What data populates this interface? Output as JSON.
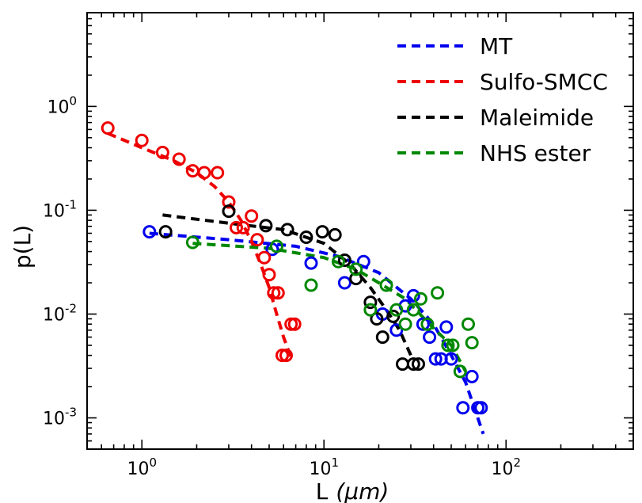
{
  "chart_data": {
    "type": "scatter",
    "title": "",
    "xlabel": "L",
    "xlabel_unit": "(μm)",
    "ylabel": "p(L)",
    "x_scale": "log",
    "y_scale": "log",
    "xlim": [
      0.5,
      500
    ],
    "ylim": [
      0.0005,
      8
    ],
    "grid": false,
    "legend_position": "top-right",
    "x_ticks": [
      {
        "value": 1,
        "base": "10",
        "exp": "0"
      },
      {
        "value": 10,
        "base": "10",
        "exp": "1"
      },
      {
        "value": 100,
        "base": "10",
        "exp": "2"
      }
    ],
    "y_ticks": [
      {
        "value": 0.001,
        "base": "10",
        "exp": "-3"
      },
      {
        "value": 0.01,
        "base": "10",
        "exp": "-2"
      },
      {
        "value": 0.1,
        "base": "10",
        "exp": "-1"
      },
      {
        "value": 1,
        "base": "10",
        "exp": "0"
      }
    ],
    "series": [
      {
        "name": "MT",
        "color": "#0000ee",
        "points": [
          [
            1.1,
            0.062
          ],
          [
            5.2,
            0.042
          ],
          [
            8.5,
            0.031
          ],
          [
            13,
            0.02
          ],
          [
            16.5,
            0.032
          ],
          [
            21,
            0.01
          ],
          [
            25,
            0.007
          ],
          [
            28,
            0.012
          ],
          [
            31,
            0.015
          ],
          [
            35,
            0.008
          ],
          [
            38,
            0.006
          ],
          [
            41,
            0.0037
          ],
          [
            44,
            0.0037
          ],
          [
            47,
            0.0075
          ],
          [
            50,
            0.0037
          ],
          [
            58,
            0.00125
          ],
          [
            65,
            0.0025
          ],
          [
            70,
            0.00125
          ],
          [
            73,
            0.00125
          ]
        ],
        "fit": [
          [
            1.1,
            0.06
          ],
          [
            3,
            0.052
          ],
          [
            7,
            0.045
          ],
          [
            12,
            0.036
          ],
          [
            20,
            0.025
          ],
          [
            30,
            0.014
          ],
          [
            40,
            0.008
          ],
          [
            50,
            0.004
          ],
          [
            60,
            0.0022
          ],
          [
            75,
            0.0007
          ]
        ]
      },
      {
        "name": "Sulfo-SMCC",
        "color": "#ee0000",
        "points": [
          [
            0.65,
            0.62
          ],
          [
            1.0,
            0.47
          ],
          [
            1.3,
            0.36
          ],
          [
            1.6,
            0.31
          ],
          [
            1.9,
            0.24
          ],
          [
            2.2,
            0.23
          ],
          [
            2.6,
            0.23
          ],
          [
            3.0,
            0.12
          ],
          [
            3.3,
            0.068
          ],
          [
            3.6,
            0.068
          ],
          [
            4.0,
            0.088
          ],
          [
            4.3,
            0.052
          ],
          [
            4.7,
            0.035
          ],
          [
            5.0,
            0.024
          ],
          [
            5.3,
            0.016
          ],
          [
            5.6,
            0.016
          ],
          [
            5.9,
            0.004
          ],
          [
            6.2,
            0.004
          ],
          [
            6.6,
            0.008
          ],
          [
            6.9,
            0.008
          ]
        ],
        "fit": [
          [
            0.65,
            0.55
          ],
          [
            1.0,
            0.4
          ],
          [
            1.5,
            0.3
          ],
          [
            2.0,
            0.23
          ],
          [
            2.5,
            0.17
          ],
          [
            3.0,
            0.12
          ],
          [
            3.5,
            0.08
          ],
          [
            4.0,
            0.05
          ],
          [
            4.5,
            0.03
          ],
          [
            5.0,
            0.018
          ],
          [
            5.5,
            0.01
          ],
          [
            6.0,
            0.006
          ],
          [
            6.6,
            0.0038
          ]
        ]
      },
      {
        "name": "Maleimide",
        "color": "#000000",
        "points": [
          [
            1.35,
            0.062
          ],
          [
            3.0,
            0.098
          ],
          [
            4.8,
            0.071
          ],
          [
            6.3,
            0.065
          ],
          [
            8.0,
            0.055
          ],
          [
            9.8,
            0.062
          ],
          [
            11.5,
            0.058
          ],
          [
            13,
            0.033
          ],
          [
            15,
            0.022
          ],
          [
            18,
            0.013
          ],
          [
            19.5,
            0.009
          ],
          [
            21,
            0.006
          ],
          [
            24,
            0.0095
          ],
          [
            27,
            0.0033
          ],
          [
            31,
            0.0033
          ],
          [
            33,
            0.0033
          ]
        ],
        "fit": [
          [
            1.3,
            0.09
          ],
          [
            3,
            0.075
          ],
          [
            6,
            0.065
          ],
          [
            10,
            0.048
          ],
          [
            14,
            0.03
          ],
          [
            18,
            0.018
          ],
          [
            22,
            0.011
          ],
          [
            26,
            0.007
          ],
          [
            30,
            0.004
          ]
        ]
      },
      {
        "name": "NHS ester",
        "color": "#008800",
        "points": [
          [
            1.9,
            0.049
          ],
          [
            5.5,
            0.045
          ],
          [
            8.5,
            0.019
          ],
          [
            12,
            0.032
          ],
          [
            15,
            0.027
          ],
          [
            18,
            0.011
          ],
          [
            22,
            0.019
          ],
          [
            25,
            0.011
          ],
          [
            28,
            0.008
          ],
          [
            31,
            0.011
          ],
          [
            34,
            0.014
          ],
          [
            37,
            0.008
          ],
          [
            42,
            0.016
          ],
          [
            48,
            0.005
          ],
          [
            51,
            0.005
          ],
          [
            56,
            0.0028
          ],
          [
            62,
            0.008
          ],
          [
            65,
            0.0053
          ]
        ],
        "fit": [
          [
            1.9,
            0.048
          ],
          [
            5,
            0.043
          ],
          [
            10,
            0.035
          ],
          [
            15,
            0.027
          ],
          [
            20,
            0.02
          ],
          [
            28,
            0.014
          ],
          [
            38,
            0.008
          ],
          [
            50,
            0.005
          ],
          [
            60,
            0.0028
          ]
        ]
      }
    ]
  }
}
